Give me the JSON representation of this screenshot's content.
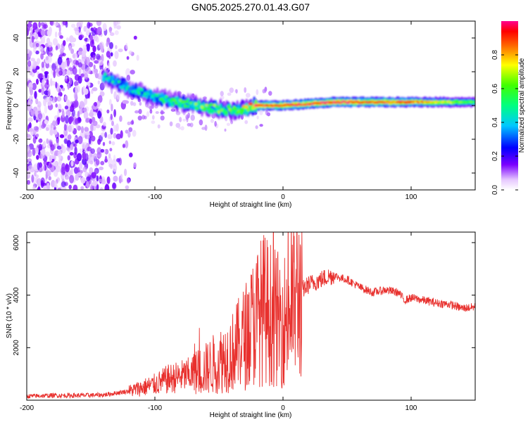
{
  "figure_title": "GN05.2025.270.01.43.G07",
  "chart_data": [
    {
      "type": "heatmap",
      "title": "GN05.2025.270.01.43.G07",
      "xlabel": "Height of straight line (km)",
      "ylabel": "Frequency (Hz)",
      "xlim": [
        -200,
        150
      ],
      "ylim": [
        -50,
        50
      ],
      "xticks": [
        -200,
        -100,
        0,
        100
      ],
      "yticks": [
        -40,
        -20,
        0,
        20,
        40
      ],
      "colorbar": {
        "label": "Normalized spectral amplitude",
        "range": [
          0,
          1
        ],
        "ticks": [
          0.0,
          0.2,
          0.4,
          0.6,
          0.8
        ],
        "tick_labels": [
          "0.0",
          "0.2",
          "0.4",
          "0.6",
          "0.8"
        ]
      },
      "ridge": {
        "description_points": [
          {
            "x": -140,
            "y": 17,
            "amp": 0.45
          },
          {
            "x": -120,
            "y": 10,
            "amp": 0.45
          },
          {
            "x": -100,
            "y": 5,
            "amp": 0.5
          },
          {
            "x": -80,
            "y": 2,
            "amp": 0.55
          },
          {
            "x": -60,
            "y": -1,
            "amp": 0.6
          },
          {
            "x": -40,
            "y": -3,
            "amp": 0.6
          },
          {
            "x": -20,
            "y": 0,
            "amp": 0.95
          },
          {
            "x": 0,
            "y": 0,
            "amp": 0.95
          },
          {
            "x": 40,
            "y": 2,
            "amp": 1.0
          },
          {
            "x": 100,
            "y": 2,
            "amp": 0.9
          },
          {
            "x": 150,
            "y": 2,
            "amp": 0.6
          }
        ],
        "noise_region_x": [
          -200,
          -120
        ]
      }
    },
    {
      "type": "line",
      "xlabel": "Height of straight line (km)",
      "ylabel": "SNR (10 * v/v)",
      "xlim": [
        -200,
        150
      ],
      "ylim": [
        0,
        6400
      ],
      "xticks": [
        -200,
        -100,
        0,
        100
      ],
      "yticks": [
        2000,
        4000,
        6000
      ],
      "series": [
        {
          "name": "SNR",
          "color": "#e8302d",
          "x": [
            -200,
            -180,
            -160,
            -140,
            -120,
            -100,
            -90,
            -80,
            -70,
            -60,
            -50,
            -40,
            -35,
            -30,
            -25,
            -20,
            -15,
            -10,
            -5,
            0,
            5,
            10,
            15,
            20,
            25,
            30,
            35,
            40,
            45,
            50,
            60,
            70,
            80,
            90,
            95,
            100,
            110,
            120,
            130,
            140,
            150
          ],
          "values": [
            150,
            180,
            180,
            200,
            350,
            600,
            800,
            900,
            1000,
            1200,
            1500,
            1800,
            2100,
            2400,
            2800,
            3200,
            3500,
            3300,
            3100,
            3000,
            3400,
            3900,
            4200,
            4400,
            4500,
            4600,
            4700,
            4750,
            4650,
            4600,
            4300,
            4100,
            4200,
            4100,
            3800,
            3900,
            3800,
            3700,
            3650,
            3500,
            3550
          ]
        }
      ]
    }
  ]
}
